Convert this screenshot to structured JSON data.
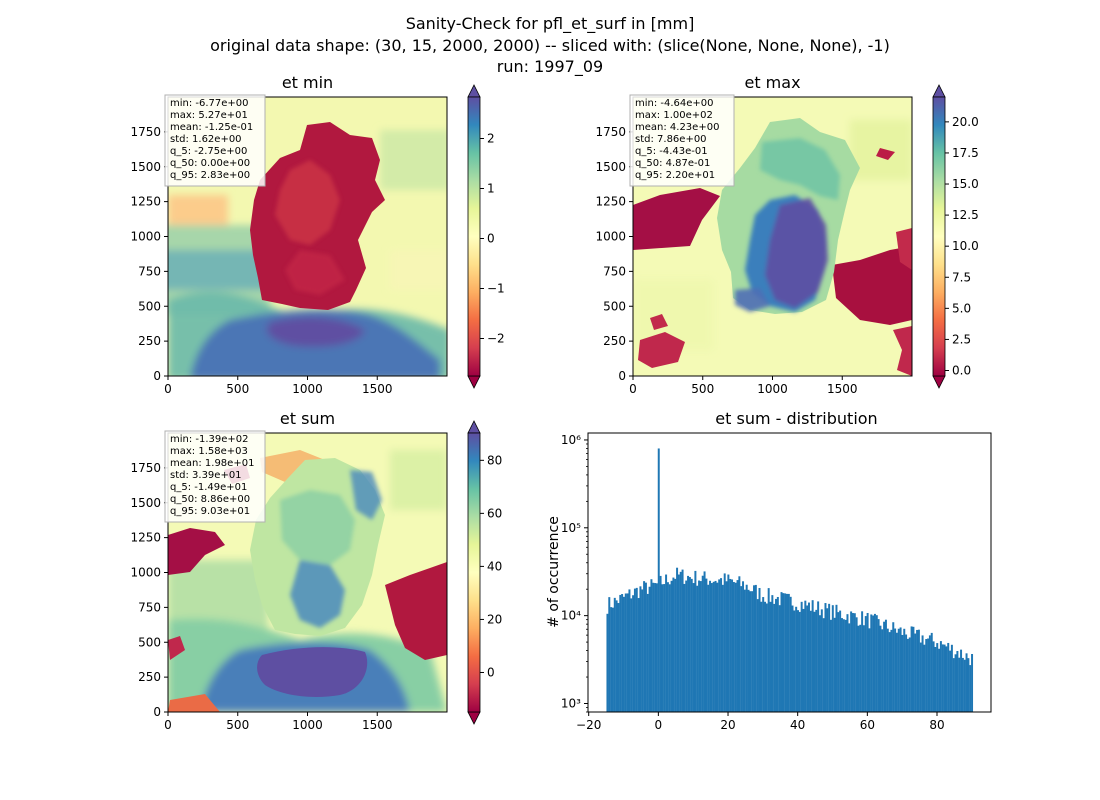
{
  "figure": {
    "title_lines": [
      "Sanity-Check for pfl_et_surf in [mm]",
      "original data shape: (30, 15, 2000, 2000) -- sliced with: (slice(None, None, None), -1)",
      "run: 1997_09"
    ]
  },
  "chart_data": [
    {
      "type": "heatmap",
      "title": "et min",
      "xlim": [
        0,
        2000
      ],
      "ylim": [
        0,
        2000
      ],
      "x_ticks": [
        0,
        500,
        1000,
        1500
      ],
      "y_ticks": [
        0,
        250,
        500,
        750,
        1000,
        1250,
        1500,
        1750
      ],
      "colormap": "Spectral",
      "colorbar": {
        "range": [
          -2.75,
          2.83
        ],
        "ticks": [
          -2,
          -1,
          0,
          1,
          2
        ],
        "tick_labels": [
          "−2",
          "−1",
          "0",
          "1",
          "2"
        ],
        "extend": "both"
      },
      "stats": [
        "min: -6.77e+00",
        "max: 5.27e+01",
        "mean: -1.25e-01",
        "std: 1.62e+00",
        "q_5: -2.75e+00",
        "q_50: 0.00e+00",
        "q_95: 2.83e+00"
      ]
    },
    {
      "type": "heatmap",
      "title": "et max",
      "xlim": [
        0,
        2000
      ],
      "ylim": [
        0,
        2000
      ],
      "x_ticks": [
        0,
        500,
        1000,
        1500
      ],
      "y_ticks": [
        0,
        250,
        500,
        750,
        1000,
        1250,
        1500,
        1750
      ],
      "colormap": "Spectral",
      "colorbar": {
        "range": [
          -0.443,
          22.0
        ],
        "ticks": [
          0,
          2.5,
          5,
          7.5,
          10,
          12.5,
          15,
          17.5,
          20
        ],
        "tick_labels": [
          "0.0",
          "2.5",
          "5.0",
          "7.5",
          "10.0",
          "12.5",
          "15.0",
          "17.5",
          "20.0"
        ],
        "extend": "both"
      },
      "stats": [
        "min: -4.64e+00",
        "max: 1.00e+02",
        "mean: 4.23e+00",
        "std: 7.86e+00",
        "q_5: -4.43e-01",
        "q_50: 4.87e-01",
        "q_95: 2.20e+01"
      ]
    },
    {
      "type": "heatmap",
      "title": "et sum",
      "xlim": [
        0,
        2000
      ],
      "ylim": [
        0,
        2000
      ],
      "x_ticks": [
        0,
        500,
        1000,
        1500
      ],
      "y_ticks": [
        0,
        250,
        500,
        750,
        1000,
        1250,
        1500,
        1750
      ],
      "colormap": "Spectral",
      "colorbar": {
        "range": [
          -14.9,
          90.3
        ],
        "ticks": [
          0,
          20,
          40,
          60,
          80
        ],
        "tick_labels": [
          "0",
          "20",
          "40",
          "60",
          "80"
        ],
        "extend": "both"
      },
      "stats": [
        "min: -1.39e+02",
        "max: 1.58e+03",
        "mean: 1.98e+01",
        "std: 3.39e+01",
        "q_5: -1.49e+01",
        "q_50: 8.86e+00",
        "q_95: 9.03e+01"
      ]
    },
    {
      "type": "bar",
      "title": "et sum - distribution",
      "ylabel": "# of occurrence",
      "yscale": "log",
      "xlim": [
        -20.2,
        95.5
      ],
      "ylim": [
        800,
        1200000
      ],
      "x_ticks": [
        -20,
        0,
        20,
        40,
        60,
        80
      ],
      "x_tick_labels": [
        "−20",
        "0",
        "20",
        "40",
        "60",
        "80"
      ],
      "y_ticks": [
        1000,
        10000,
        100000,
        1000000
      ],
      "y_tick_labels": [
        "10³",
        "10⁴",
        "10⁵",
        "10⁶"
      ],
      "color": "#1f77b4",
      "bin_range": [
        -14.9,
        90.3
      ],
      "bins": 200,
      "peak": {
        "x": 0,
        "y": 800000
      },
      "anchor_points": [
        [
          -14.9,
          13000
        ],
        [
          -10,
          16000
        ],
        [
          -5,
          20000
        ],
        [
          -1,
          22000
        ],
        [
          2,
          25000
        ],
        [
          5,
          29000
        ],
        [
          10,
          27000
        ],
        [
          20,
          25000
        ],
        [
          25,
          22000
        ],
        [
          30,
          17000
        ],
        [
          40,
          14000
        ],
        [
          50,
          11000
        ],
        [
          60,
          9000
        ],
        [
          70,
          6500
        ],
        [
          80,
          5000
        ],
        [
          90.3,
          3200
        ]
      ]
    }
  ]
}
